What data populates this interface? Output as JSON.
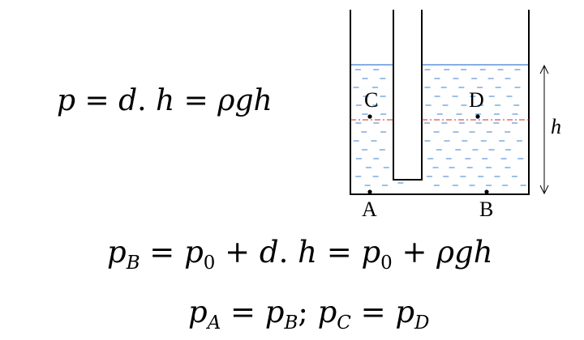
{
  "formulas": {
    "main": {
      "p": "p",
      "eq1": " = ",
      "d": "d",
      "dot": ". ",
      "h": "h",
      "eq2": " = ",
      "rho_g_h": "ρgh"
    },
    "pressure_b": {
      "p": "p",
      "sub_b": "B",
      "eq": " = ",
      "p0_a": "p",
      "sub_0a": "0",
      "plus1": " + ",
      "d": "d",
      "dot": ". ",
      "h": "h",
      "eq2": " = ",
      "p0_b": "p",
      "sub_0b": "0",
      "plus2": " + ",
      "rho_g_h": "ρgh"
    },
    "equalities": {
      "pa": "p",
      "sub_a": "A",
      "eq1": " = ",
      "pb": "p",
      "sub_b": "B",
      "sep": "; ",
      "pc": "p",
      "sub_c": "C",
      "eq2": " = ",
      "pd": "p",
      "sub_d": "D"
    }
  },
  "diagram": {
    "labels": {
      "a": "A",
      "b": "B",
      "c": "C",
      "d": "D",
      "height": "h"
    },
    "colors": {
      "water": "#3d7fcf",
      "reference_line": "#e02020",
      "walls": "#000000"
    }
  }
}
